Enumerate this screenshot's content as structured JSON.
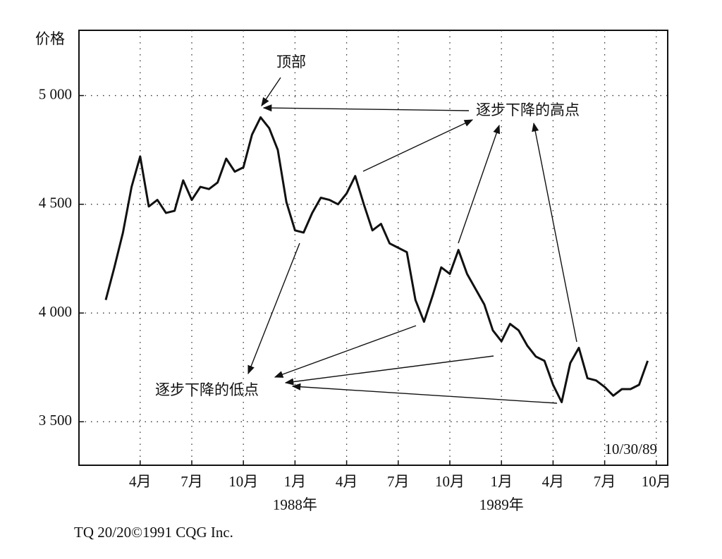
{
  "chart_data": {
    "type": "line",
    "y_label": "价格",
    "annotations": [
      "顶部",
      "逐步下降的高点",
      "逐步下降的低点",
      "10/30/89"
    ],
    "footer": "TQ 20/20©1991 CQG Inc.",
    "categories": [
      null,
      null,
      null,
      null,
      "4月",
      null,
      null,
      null,
      null,
      null,
      "7月",
      null,
      null,
      null,
      null,
      null,
      "10月",
      null,
      null,
      null,
      null,
      null,
      "1月",
      null,
      null,
      null,
      null,
      null,
      "4月",
      null,
      null,
      null,
      null,
      null,
      "7月",
      null,
      null,
      null,
      null,
      null,
      "10月",
      null,
      null,
      null,
      null,
      null,
      "1月",
      null,
      null,
      null,
      null,
      null,
      "4月",
      null,
      null,
      null,
      null,
      null,
      "7月",
      null,
      null,
      null,
      null,
      null,
      "10月"
    ],
    "year_labels": [
      null,
      null,
      null,
      null,
      null,
      null,
      null,
      null,
      null,
      null,
      null,
      null,
      null,
      null,
      null,
      null,
      null,
      null,
      null,
      null,
      null,
      null,
      "1988年",
      null,
      null,
      null,
      null,
      null,
      null,
      null,
      null,
      null,
      null,
      null,
      null,
      null,
      null,
      null,
      null,
      null,
      null,
      null,
      null,
      null,
      null,
      null,
      "1989年",
      null,
      null,
      null,
      null,
      null,
      null,
      null,
      null,
      null,
      null,
      null,
      null,
      null,
      null,
      null,
      null,
      null,
      null
    ],
    "values": [
      4060,
      4210,
      4370,
      4580,
      4720,
      4490,
      4520,
      4460,
      4470,
      4610,
      4520,
      4580,
      4570,
      4600,
      4710,
      4650,
      4670,
      4820,
      4900,
      4850,
      4750,
      4510,
      4380,
      4370,
      4460,
      4530,
      4520,
      4500,
      4550,
      4630,
      4500,
      4380,
      4410,
      4320,
      4300,
      4280,
      4060,
      3960,
      4080,
      4210,
      4180,
      4290,
      4180,
      4110,
      4040,
      3920,
      3870,
      3950,
      3920,
      3850,
      3800,
      3780,
      3670,
      3590,
      3770,
      3840,
      3700,
      3690,
      3660,
      3620,
      3650,
      3650,
      3670,
      3780,
      null
    ],
    "color": "#111111",
    "ylim": [
      3300,
      5300
    ],
    "yticks": [
      {
        "value": 3500,
        "label": "3 500"
      },
      {
        "value": 4000,
        "label": "4 000"
      },
      {
        "value": 4500,
        "label": "4 500"
      },
      {
        "value": 5000,
        "label": "5 000"
      }
    ],
    "grid": true
  }
}
